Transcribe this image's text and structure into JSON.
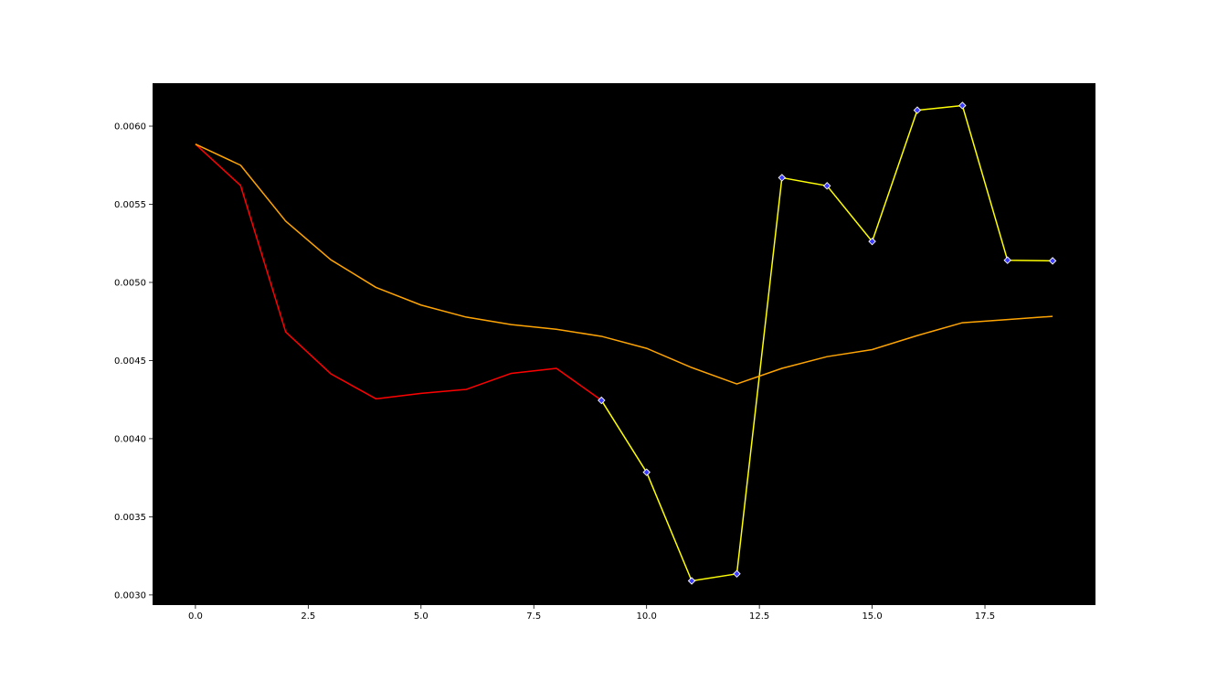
{
  "chart_data": {
    "type": "line",
    "title": "",
    "xlabel": "",
    "ylabel": "",
    "xlim": [
      -0.95,
      19.95
    ],
    "ylim": [
      0.002935,
      0.006275
    ],
    "xticks": [
      0.0,
      2.5,
      5.0,
      7.5,
      10.0,
      12.5,
      15.0,
      17.5
    ],
    "xtick_labels": [
      "0.0",
      "2.5",
      "5.0",
      "7.5",
      "10.0",
      "12.5",
      "15.0",
      "17.5"
    ],
    "yticks": [
      0.003,
      0.0035,
      0.004,
      0.0045,
      0.005,
      0.0055,
      0.006
    ],
    "ytick_labels": [
      "0.0030",
      "0.0035",
      "0.0040",
      "0.0045",
      "0.0050",
      "0.0055",
      "0.0060"
    ],
    "grid": false,
    "plot_background": "#000000",
    "series": [
      {
        "color": "#ff0000",
        "marker": "none",
        "x": [
          0,
          1,
          2,
          3,
          4,
          5,
          6,
          7,
          8,
          9
        ],
        "y": [
          0.005885,
          0.00562,
          0.004683,
          0.004415,
          0.004255,
          0.00429,
          0.004315,
          0.004418,
          0.00445,
          0.004245
        ]
      },
      {
        "color": "#ffff00",
        "marker": "diamond",
        "marker_fill": "#3b3bff",
        "marker_edge": "#ffffff",
        "x": [
          9,
          10,
          11,
          12,
          13,
          14,
          15,
          16,
          17,
          18,
          19
        ],
        "y": [
          0.004245,
          0.003785,
          0.00309,
          0.003135,
          0.00567,
          0.005618,
          0.005262,
          0.006102,
          0.006132,
          0.005142,
          0.005138
        ]
      },
      {
        "color": "#ffa500",
        "marker": "none",
        "x": [
          0,
          1,
          2,
          3,
          4,
          5,
          6,
          7,
          8,
          9,
          10,
          11,
          12,
          13,
          14,
          15,
          16,
          17,
          18,
          19
        ],
        "y": [
          0.005885,
          0.00575,
          0.005392,
          0.005145,
          0.004968,
          0.004855,
          0.004778,
          0.00473,
          0.0047,
          0.004655,
          0.004578,
          0.004455,
          0.00435,
          0.00445,
          0.004525,
          0.00457,
          0.00466,
          0.004742,
          0.004762,
          0.004783
        ]
      }
    ]
  }
}
